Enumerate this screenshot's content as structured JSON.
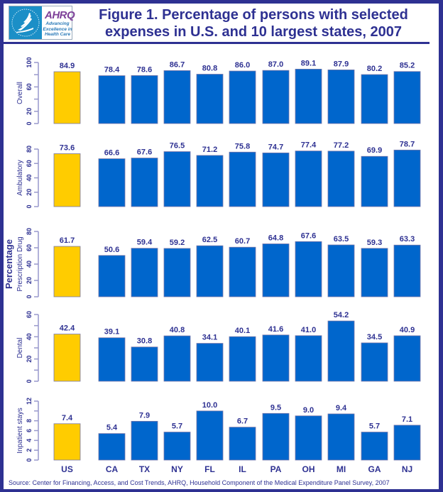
{
  "header": {
    "title_line1": "Figure 1. Percentage of persons with selected",
    "title_line2": "expenses in U.S. and 10 largest states, 2007",
    "logo": {
      "brand": "AHRQ",
      "tagline_line1": "Advancing",
      "tagline_line2": "Excellence in",
      "tagline_line3": "Health Care",
      "emblem": "hhs-eagle-icon"
    }
  },
  "footer": {
    "source": "Source: Center for Financing, Access, and Cost Trends, AHRQ, Household Component of the Medical Expenditure Panel Survey, 2007"
  },
  "colors": {
    "frame": "#2e3192",
    "us_bar": "#ffcc00",
    "state_bar": "#0066cc",
    "axis": "#9999cc",
    "text": "#2e3192"
  },
  "chart_data": {
    "type": "bar",
    "title": "Figure 1. Percentage of persons with selected expenses in U.S. and 10 largest states, 2007",
    "ylabel": "Percentage",
    "xlabel": "",
    "grid": false,
    "legend": "none",
    "categories": [
      "US",
      "CA",
      "TX",
      "NY",
      "FL",
      "IL",
      "PA",
      "OH",
      "MI",
      "GA",
      "NJ"
    ],
    "highlight_category": "US",
    "panels": [
      {
        "name": "Overall",
        "ylim": [
          0,
          100
        ],
        "ticks": [
          0,
          20,
          40,
          60,
          80,
          100
        ],
        "tick_labels": [
          "0",
          "20",
          "",
          "60",
          "",
          "100"
        ],
        "values": [
          84.9,
          78.4,
          78.6,
          86.7,
          80.8,
          86.0,
          87.0,
          89.1,
          87.9,
          80.2,
          85.2
        ],
        "data_labels": [
          "84.9",
          "78.4",
          "78.6",
          "86.7",
          "80.8",
          "86.0",
          "87.0",
          "89.1",
          "87.9",
          "80.2",
          "85.2"
        ]
      },
      {
        "name": "Ambulatory",
        "ylim": [
          0,
          80
        ],
        "ticks": [
          0,
          20,
          40,
          60,
          80
        ],
        "tick_labels": [
          "0",
          "20",
          "40",
          "60",
          "80"
        ],
        "values": [
          73.6,
          66.6,
          67.6,
          76.5,
          71.2,
          75.8,
          74.7,
          77.4,
          77.2,
          69.9,
          78.7
        ],
        "data_labels": [
          "73.6",
          "66.6",
          "67.6",
          "76.5",
          "71.2",
          "75.8",
          "74.7",
          "77.4",
          "77.2",
          "69.9",
          "78.7"
        ]
      },
      {
        "name": "Prescription Drug",
        "ylim": [
          0,
          80
        ],
        "ticks": [
          0,
          20,
          40,
          60,
          80
        ],
        "tick_labels": [
          "0",
          "20",
          "40",
          "60",
          "80"
        ],
        "values": [
          61.7,
          50.6,
          59.4,
          59.2,
          62.5,
          60.7,
          64.8,
          67.6,
          63.5,
          59.3,
          63.3
        ],
        "data_labels": [
          "61.7",
          "50.6",
          "59.4",
          "59.2",
          "62.5",
          "60.7",
          "64.8",
          "67.6",
          "63.5",
          "59.3",
          "63.3"
        ]
      },
      {
        "name": "Dental",
        "ylim": [
          0,
          60
        ],
        "ticks": [
          0,
          10,
          20,
          30,
          40,
          50,
          60
        ],
        "tick_labels": [
          "0",
          "",
          "20",
          "",
          "40",
          "",
          "60"
        ],
        "values": [
          42.4,
          39.1,
          30.8,
          40.8,
          34.1,
          40.1,
          41.6,
          41.0,
          54.2,
          34.5,
          40.9
        ],
        "data_labels": [
          "42.4",
          "39.1",
          "30.8",
          "40.8",
          "34.1",
          "40.1",
          "41.6",
          "41.0",
          "54.2",
          "34.5",
          "40.9"
        ]
      },
      {
        "name": "Inpatient stays",
        "ylim": [
          0,
          12
        ],
        "ticks": [
          0,
          2,
          4,
          6,
          8,
          10,
          12
        ],
        "tick_labels": [
          "0",
          "2",
          "4",
          "6",
          "8",
          "",
          "12"
        ],
        "values": [
          7.4,
          5.4,
          7.9,
          5.7,
          10.0,
          6.7,
          9.5,
          9.0,
          9.4,
          5.7,
          7.1
        ],
        "data_labels": [
          "7.4",
          "5.4",
          "7.9",
          "5.7",
          "10.0",
          "6.7",
          "9.5",
          "9.0",
          "9.4",
          "5.7",
          "7.1"
        ]
      }
    ]
  }
}
